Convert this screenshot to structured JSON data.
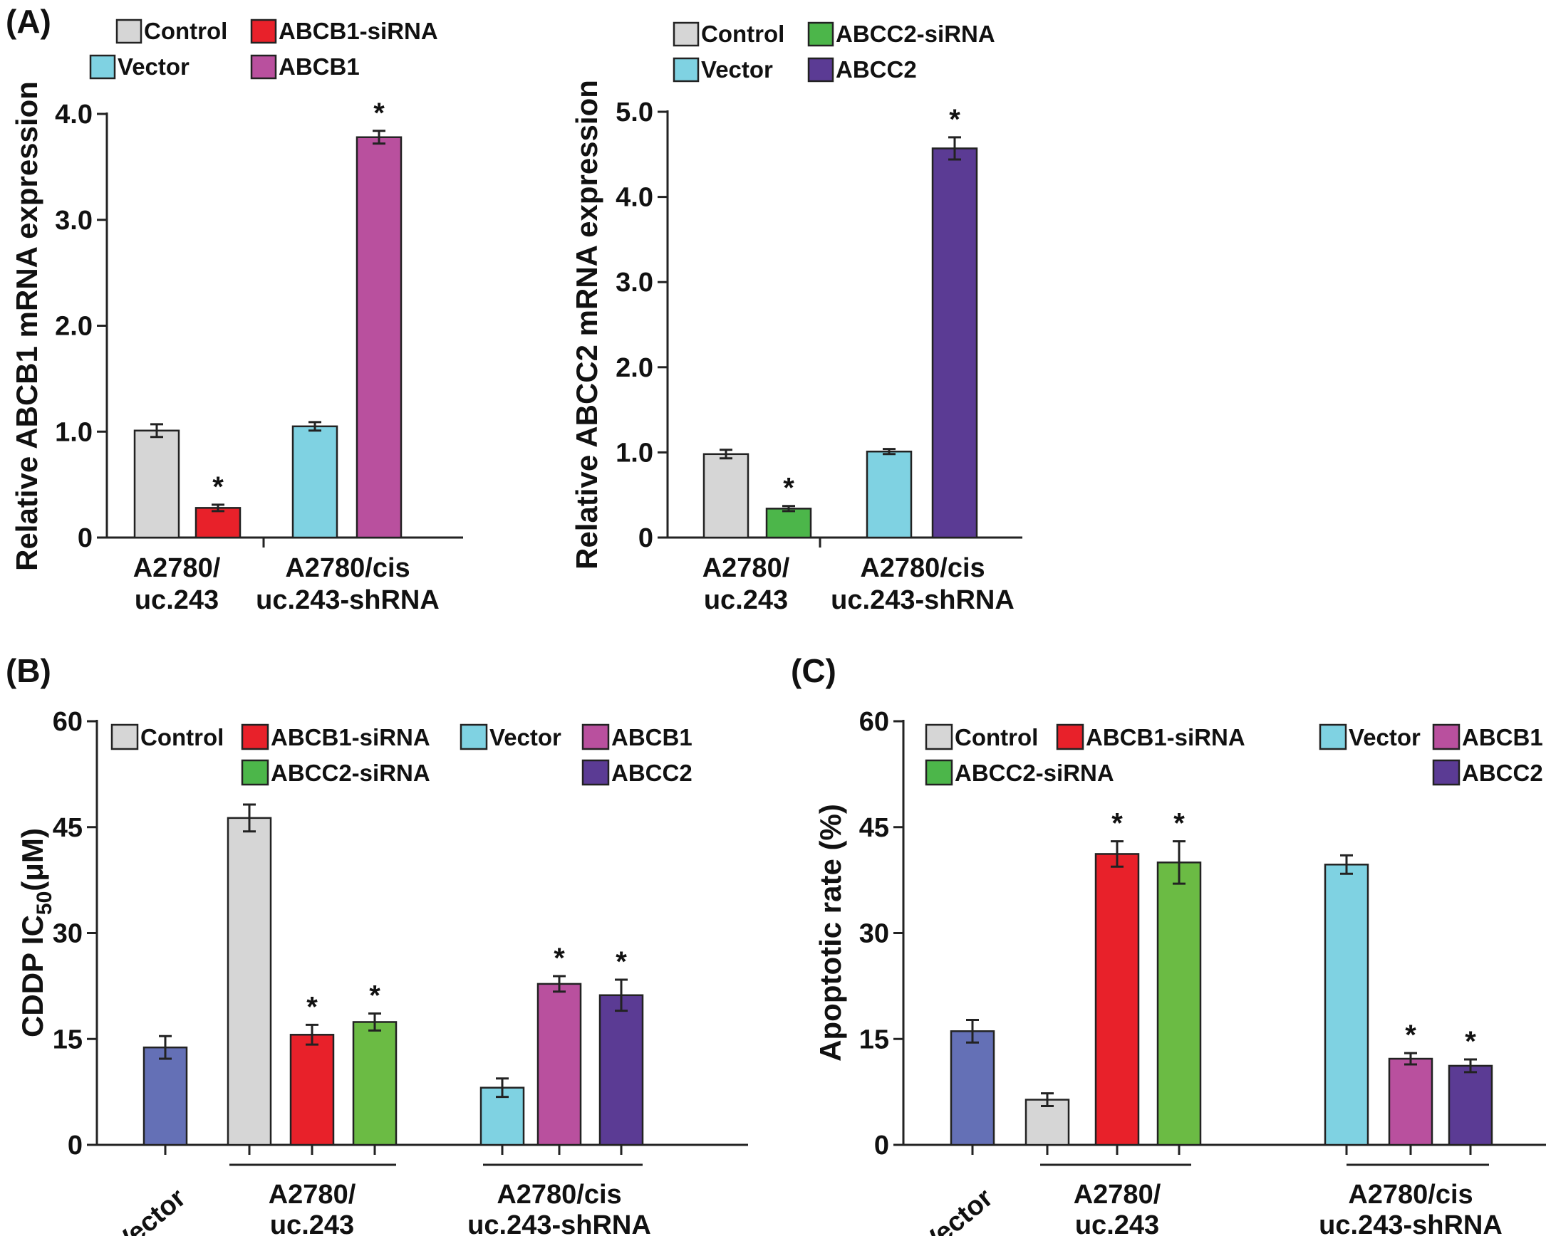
{
  "colors": {
    "Control": "#d6d6d6",
    "ABCB1-siRNA": "#e8212a",
    "ABCC2-siRNA": "#4cb64a",
    "Vector": "#7fd2e2",
    "ABCB1": "#b9509e",
    "ABCC2": "#5b3b94",
    "VectorLeft": "#6470b6",
    "B_ABCC2-siRNA": "#6bbb44"
  },
  "panels": {
    "A": "(A)",
    "B": "(B)",
    "C": "(C)"
  },
  "chart_data": [
    {
      "id": "A1",
      "type": "bar",
      "ylabel": "Relative ABCB1 mRNA expression",
      "ylim": [
        0,
        4.0
      ],
      "yticks": [
        "0",
        "1.0",
        "2.0",
        "3.0",
        "4.0"
      ],
      "ytick_values": [
        0,
        1,
        2,
        3,
        4
      ],
      "legend": [
        "Control",
        "ABCB1-siRNA",
        "Vector",
        "ABCB1"
      ],
      "groups": [
        {
          "label": [
            "A2780/",
            "uc.243"
          ],
          "bars": [
            {
              "name": "Control",
              "value": 1.01,
              "err": 0.06,
              "sig": ""
            },
            {
              "name": "ABCB1-siRNA",
              "value": 0.28,
              "err": 0.03,
              "sig": "*"
            }
          ]
        },
        {
          "label": [
            "A2780/cis",
            "uc.243-shRNA"
          ],
          "bars": [
            {
              "name": "Vector",
              "value": 1.05,
              "err": 0.04,
              "sig": ""
            },
            {
              "name": "ABCB1",
              "value": 3.78,
              "err": 0.06,
              "sig": "*"
            }
          ]
        }
      ]
    },
    {
      "id": "A2",
      "type": "bar",
      "ylabel": "Relative ABCC2 mRNA expression",
      "ylim": [
        0,
        5.0
      ],
      "yticks": [
        "0",
        "1.0",
        "2.0",
        "3.0",
        "4.0",
        "5.0"
      ],
      "ytick_values": [
        0,
        1,
        2,
        3,
        4,
        5
      ],
      "legend": [
        "Control",
        "ABCC2-siRNA",
        "Vector",
        "ABCC2"
      ],
      "groups": [
        {
          "label": [
            "A2780/",
            "uc.243"
          ],
          "bars": [
            {
              "name": "Control",
              "value": 0.98,
              "err": 0.05,
              "sig": ""
            },
            {
              "name": "ABCC2-siRNA",
              "value": 0.34,
              "err": 0.03,
              "sig": "*"
            }
          ]
        },
        {
          "label": [
            "A2780/cis",
            "uc.243-shRNA"
          ],
          "bars": [
            {
              "name": "Vector",
              "value": 1.01,
              "err": 0.03,
              "sig": ""
            },
            {
              "name": "ABCC2",
              "value": 4.57,
              "err": 0.13,
              "sig": "*"
            }
          ]
        }
      ]
    },
    {
      "id": "B",
      "type": "bar",
      "ylabel": "CDDP IC",
      "ylabel_sub": "50",
      "ylabel_unit": "(μM)",
      "ylim": [
        0,
        60
      ],
      "yticks": [
        "0",
        "15",
        "30",
        "45",
        "60"
      ],
      "ytick_values": [
        0,
        15,
        30,
        45,
        60
      ],
      "legend": [
        "Control",
        "ABCB1-siRNA",
        "Vector",
        "ABCB1",
        "ABCC2-siRNA",
        "ABCC2"
      ],
      "groups": [
        {
          "label": [
            "Vector"
          ],
          "rotated": true,
          "bars": [
            {
              "name": "Vector",
              "value": 13.8,
              "err": 1.6,
              "sig": ""
            }
          ]
        },
        {
          "label": [
            "A2780/",
            "uc.243"
          ],
          "bars": [
            {
              "name": "Control",
              "value": 46.3,
              "err": 1.9,
              "sig": ""
            },
            {
              "name": "ABCB1-siRNA",
              "value": 15.6,
              "err": 1.4,
              "sig": "*"
            },
            {
              "name": "ABCC2-siRNA",
              "value": 17.4,
              "err": 1.2,
              "sig": "*"
            }
          ]
        },
        {
          "label": [
            "A2780/cis",
            "uc.243-shRNA"
          ],
          "bars": [
            {
              "name": "Vector",
              "value": 8.1,
              "err": 1.3,
              "sig": ""
            },
            {
              "name": "ABCB1",
              "value": 22.8,
              "err": 1.1,
              "sig": "*"
            },
            {
              "name": "ABCC2",
              "value": 21.2,
              "err": 2.2,
              "sig": "*"
            }
          ]
        }
      ]
    },
    {
      "id": "C",
      "type": "bar",
      "ylabel": "Apoptotic rate (%)",
      "ylim": [
        0,
        60
      ],
      "yticks": [
        "0",
        "15",
        "30",
        "45",
        "60"
      ],
      "ytick_values": [
        0,
        15,
        30,
        45,
        60
      ],
      "legend": [
        "Control",
        "ABCB1-siRNA",
        "Vector",
        "ABCB1",
        "ABCC2-siRNA",
        "ABCC2"
      ],
      "groups": [
        {
          "label": [
            "Vector"
          ],
          "rotated": true,
          "bars": [
            {
              "name": "Vector",
              "value": 16.1,
              "err": 1.6,
              "sig": ""
            }
          ]
        },
        {
          "label": [
            "A2780/",
            "uc.243"
          ],
          "bars": [
            {
              "name": "Control",
              "value": 6.4,
              "err": 0.9,
              "sig": ""
            },
            {
              "name": "ABCB1-siRNA",
              "value": 41.2,
              "err": 1.8,
              "sig": "*"
            },
            {
              "name": "ABCC2-siRNA",
              "value": 40.0,
              "err": 3.0,
              "sig": "*"
            }
          ]
        },
        {
          "label": [
            "A2780/cis",
            "uc.243-shRNA"
          ],
          "bars": [
            {
              "name": "Vector",
              "value": 39.7,
              "err": 1.3,
              "sig": ""
            },
            {
              "name": "ABCB1",
              "value": 12.2,
              "err": 0.8,
              "sig": "*"
            },
            {
              "name": "ABCC2",
              "value": 11.2,
              "err": 0.9,
              "sig": "*"
            }
          ]
        }
      ]
    }
  ]
}
